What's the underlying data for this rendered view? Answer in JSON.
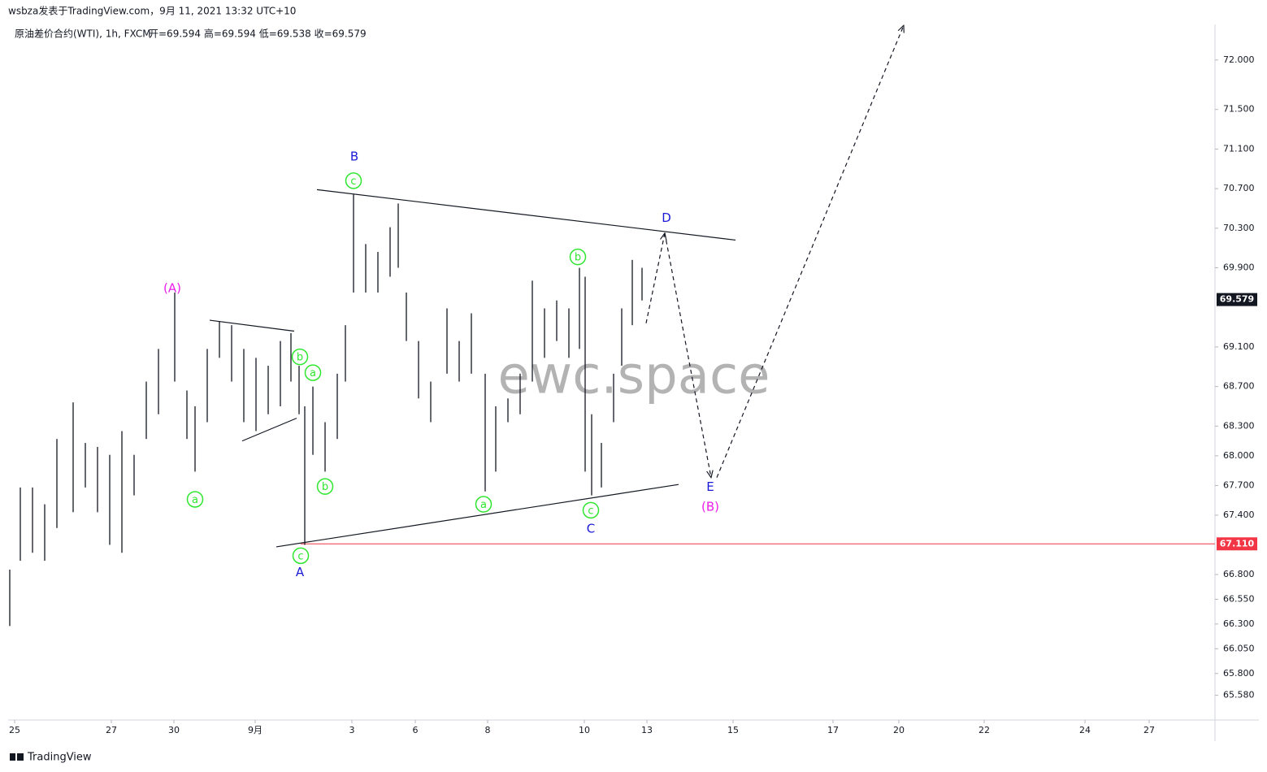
{
  "header": {
    "author_line": "wsbza发表于TradingView.com，9月 11, 2021 13:32 UTC+10"
  },
  "footer": {
    "brand": "TradingView"
  },
  "chart_data": {
    "type": "ohlc",
    "symbol": "原油差价合约(WTI), 1h, FXCM",
    "ohlc_line": "开=69.594 高=69.594 低=69.538 收=69.579",
    "watermark": "ewc.space",
    "color": "#131722",
    "xlim": [
      10,
      1495
    ],
    "ylim": [
      65.33,
      72.36
    ],
    "xticks": [
      {
        "value": 18,
        "label": "25"
      },
      {
        "value": 137,
        "label": "27"
      },
      {
        "value": 214,
        "label": "30"
      },
      {
        "value": 314,
        "label": "9月"
      },
      {
        "value": 433,
        "label": "3"
      },
      {
        "value": 511,
        "label": "6"
      },
      {
        "value": 600,
        "label": "8"
      },
      {
        "value": 719,
        "label": "10"
      },
      {
        "value": 796,
        "label": "13"
      },
      {
        "value": 902,
        "label": "15"
      },
      {
        "value": 1025,
        "label": "17"
      },
      {
        "value": 1106,
        "label": "20"
      },
      {
        "value": 1211,
        "label": "22"
      },
      {
        "value": 1335,
        "label": "24"
      },
      {
        "value": 1414,
        "label": "27"
      }
    ],
    "yticks": [
      {
        "value": 72,
        "label": "72.000"
      },
      {
        "value": 71.5,
        "label": "71.500"
      },
      {
        "value": 71.1,
        "label": "71.100"
      },
      {
        "value": 70.7,
        "label": "70.700"
      },
      {
        "value": 70.3,
        "label": "70.300"
      },
      {
        "value": 69.9,
        "label": "69.900"
      },
      {
        "value": 69.1,
        "label": "69.100"
      },
      {
        "value": 68.7,
        "label": "68.700"
      },
      {
        "value": 68.3,
        "label": "68.300"
      },
      {
        "value": 68,
        "label": "68.000"
      },
      {
        "value": 67.7,
        "label": "67.700"
      },
      {
        "value": 67.4,
        "label": "67.400"
      },
      {
        "value": 66.8,
        "label": "66.800"
      },
      {
        "value": 66.55,
        "label": "66.550"
      },
      {
        "value": 66.3,
        "label": "66.300"
      },
      {
        "value": 66.05,
        "label": "66.050"
      },
      {
        "value": 65.8,
        "label": "65.800"
      },
      {
        "value": 65.58,
        "label": "65.580"
      }
    ],
    "last_price": 69.579,
    "horizontal_line": {
      "value": 67.11,
      "label": "67.110",
      "color": "#f23645",
      "from_x": 370
    },
    "bars": [
      {
        "x": 12,
        "high": 66.85,
        "low": 66.28
      },
      {
        "x": 25,
        "high": 67.68,
        "low": 66.94
      },
      {
        "x": 40,
        "high": 67.68,
        "low": 67.02
      },
      {
        "x": 55,
        "high": 67.51,
        "low": 66.94
      },
      {
        "x": 70,
        "high": 68.17,
        "low": 67.27
      },
      {
        "x": 90,
        "high": 68.54,
        "low": 67.43
      },
      {
        "x": 105,
        "high": 68.13,
        "low": 67.68
      },
      {
        "x": 120,
        "high": 68.09,
        "low": 67.43
      },
      {
        "x": 135,
        "high": 68.01,
        "low": 67.1
      },
      {
        "x": 150,
        "high": 68.25,
        "low": 67.02
      },
      {
        "x": 165,
        "high": 68.01,
        "low": 67.6
      },
      {
        "x": 180,
        "high": 68.75,
        "low": 68.17
      },
      {
        "x": 195,
        "high": 69.08,
        "low": 68.42
      },
      {
        "x": 215,
        "high": 69.65,
        "low": 68.75
      },
      {
        "x": 230,
        "high": 68.66,
        "low": 68.17
      },
      {
        "x": 240,
        "high": 68.5,
        "low": 67.84
      },
      {
        "x": 255,
        "high": 69.08,
        "low": 68.34
      },
      {
        "x": 270,
        "high": 69.36,
        "low": 68.99
      },
      {
        "x": 285,
        "high": 69.32,
        "low": 68.75
      },
      {
        "x": 300,
        "high": 69.08,
        "low": 68.34
      },
      {
        "x": 315,
        "high": 68.99,
        "low": 68.25
      },
      {
        "x": 330,
        "high": 68.91,
        "low": 68.42
      },
      {
        "x": 345,
        "high": 69.16,
        "low": 68.5
      },
      {
        "x": 358,
        "high": 69.24,
        "low": 68.75
      },
      {
        "x": 368,
        "high": 68.91,
        "low": 68.42
      },
      {
        "x": 375,
        "high": 68.5,
        "low": 67.1
      },
      {
        "x": 385,
        "high": 68.7,
        "low": 68.01
      },
      {
        "x": 400,
        "high": 68.34,
        "low": 67.84
      },
      {
        "x": 415,
        "high": 68.83,
        "low": 68.17
      },
      {
        "x": 425,
        "high": 69.32,
        "low": 68.75
      },
      {
        "x": 435,
        "high": 70.64,
        "low": 69.65
      },
      {
        "x": 450,
        "high": 70.14,
        "low": 69.65
      },
      {
        "x": 465,
        "high": 70.06,
        "low": 69.65
      },
      {
        "x": 480,
        "high": 70.31,
        "low": 69.81
      },
      {
        "x": 490,
        "high": 70.55,
        "low": 69.9
      },
      {
        "x": 500,
        "high": 69.65,
        "low": 69.16
      },
      {
        "x": 515,
        "high": 69.16,
        "low": 68.58
      },
      {
        "x": 530,
        "high": 68.75,
        "low": 68.34
      },
      {
        "x": 550,
        "high": 69.49,
        "low": 68.83
      },
      {
        "x": 565,
        "high": 69.16,
        "low": 68.75
      },
      {
        "x": 580,
        "high": 69.44,
        "low": 68.83
      },
      {
        "x": 597,
        "high": 68.83,
        "low": 67.64
      },
      {
        "x": 610,
        "high": 68.5,
        "low": 67.84
      },
      {
        "x": 625,
        "high": 68.58,
        "low": 68.34
      },
      {
        "x": 640,
        "high": 68.83,
        "low": 68.42
      },
      {
        "x": 655,
        "high": 69.77,
        "low": 68.75
      },
      {
        "x": 670,
        "high": 69.49,
        "low": 68.99
      },
      {
        "x": 685,
        "high": 69.57,
        "low": 69.16
      },
      {
        "x": 700,
        "high": 69.49,
        "low": 68.99
      },
      {
        "x": 713,
        "high": 69.9,
        "low": 69.08
      },
      {
        "x": 720,
        "high": 69.81,
        "low": 67.84
      },
      {
        "x": 728,
        "high": 68.42,
        "low": 67.6
      },
      {
        "x": 740,
        "high": 68.13,
        "low": 67.68
      },
      {
        "x": 755,
        "high": 68.83,
        "low": 68.34
      },
      {
        "x": 765,
        "high": 69.49,
        "low": 68.91
      },
      {
        "x": 778,
        "high": 69.98,
        "low": 69.32
      },
      {
        "x": 790,
        "high": 69.9,
        "low": 69.57
      }
    ],
    "trendlines": [
      {
        "points": [
          [
            390,
            70.69
          ],
          [
            905,
            70.18
          ]
        ]
      },
      {
        "points": [
          [
            340,
            67.08
          ],
          [
            835,
            67.71
          ]
        ]
      },
      {
        "points": [
          [
            258,
            69.37
          ],
          [
            362,
            69.26
          ]
        ]
      },
      {
        "points": [
          [
            298,
            68.15
          ],
          [
            365,
            68.38
          ]
        ]
      }
    ],
    "projection": [
      {
        "points": [
          [
            795,
            69.34
          ],
          [
            818,
            70.25
          ]
        ]
      },
      {
        "points": [
          [
            818,
            70.25
          ],
          [
            875,
            67.78
          ]
        ]
      },
      {
        "points": [
          [
            882,
            67.78
          ],
          [
            1112,
            72.35
          ]
        ]
      }
    ],
    "annotations": [
      {
        "text": "(A)",
        "x": 212,
        "y": 69.7,
        "color": "#e91ee9",
        "circled": false
      },
      {
        "text": "a",
        "x": 240,
        "y": 67.56,
        "color": "#2ee62e",
        "circled": true
      },
      {
        "text": "b",
        "x": 369,
        "y": 69.0,
        "color": "#2ee62e",
        "circled": true
      },
      {
        "text": "a",
        "x": 385,
        "y": 68.84,
        "color": "#2ee62e",
        "circled": true
      },
      {
        "text": "b",
        "x": 400,
        "y": 67.69,
        "color": "#2ee62e",
        "circled": true
      },
      {
        "text": "c",
        "x": 370,
        "y": 66.99,
        "color": "#2ee62e",
        "circled": true
      },
      {
        "text": "A",
        "x": 369,
        "y": 66.83,
        "color": "#1a1ad6",
        "circled": false
      },
      {
        "text": "B",
        "x": 436,
        "y": 71.03,
        "color": "#1a1ad6",
        "circled": false
      },
      {
        "text": "c",
        "x": 435,
        "y": 70.78,
        "color": "#2ee62e",
        "circled": true
      },
      {
        "text": "a",
        "x": 595,
        "y": 67.51,
        "color": "#2ee62e",
        "circled": true
      },
      {
        "text": "b",
        "x": 711,
        "y": 70.01,
        "color": "#2ee62e",
        "circled": true
      },
      {
        "text": "c",
        "x": 727,
        "y": 67.45,
        "color": "#2ee62e",
        "circled": true
      },
      {
        "text": "C",
        "x": 727,
        "y": 67.27,
        "color": "#1a1ad6",
        "circled": false
      },
      {
        "text": "D",
        "x": 820,
        "y": 70.41,
        "color": "#1a1ad6",
        "circled": false
      },
      {
        "text": "E",
        "x": 874,
        "y": 67.69,
        "color": "#1a1ad6",
        "circled": false
      },
      {
        "text": "(B)",
        "x": 874,
        "y": 67.49,
        "color": "#e91ee9",
        "circled": false
      }
    ]
  }
}
